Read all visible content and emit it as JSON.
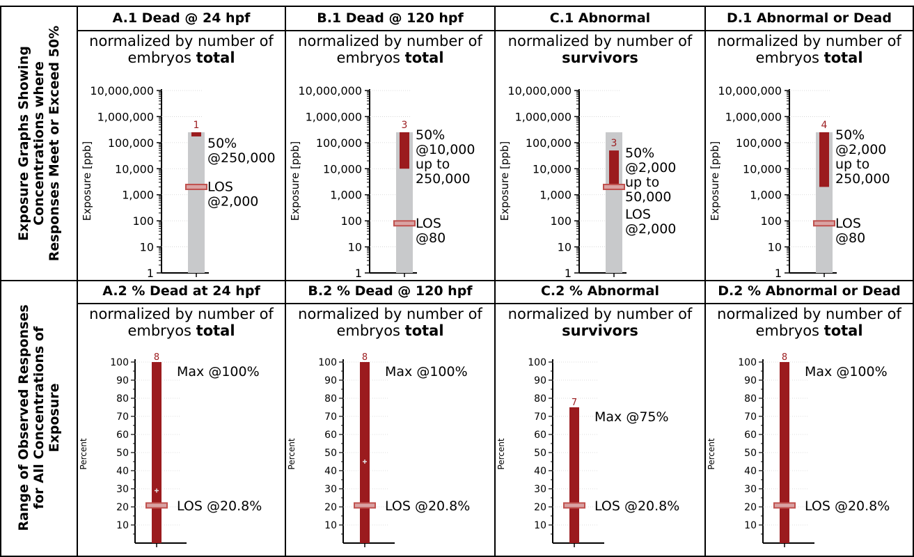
{
  "row_labels": [
    "Exposure Graphs Showing Concentrations where Responses Meet or Exceed 50%",
    "Range of Observed Responses for All Concentrations of Exposure"
  ],
  "row_label_lines": [
    [
      "Exposure Graphs Showing",
      "Concentrations where",
      "Responses Meet or Exceed 50%"
    ],
    [
      "Range of Observed Responses",
      "for All Concentrations of",
      "Exposure"
    ]
  ],
  "colors": {
    "bar_bg": "#c8c9cb",
    "bar_fill": "#9b1b1e",
    "los_border": "#c0504d",
    "los_fill": "#d9a3a3",
    "count": "#9b1b1e"
  },
  "chart_data": [
    {
      "id": "A.1",
      "title": "A.1 Dead @ 24 hpf",
      "subtitle_pre": "normalized by number of embryos ",
      "subtitle_bold": "total",
      "type": "bar",
      "scale": "log",
      "ylabel": "Exposure [ppb]",
      "yticks": [
        "10,000,000",
        "1,000,000",
        "100,000",
        "10,000",
        "1,000",
        "100",
        "10",
        "1"
      ],
      "ylim": [
        1,
        10000000
      ],
      "range_max": 250000,
      "range": [
        250000,
        250000
      ],
      "los": 2000,
      "count": "1",
      "annotations": [
        [
          "50%",
          "@250,000"
        ],
        [
          "LOS",
          "@2,000"
        ]
      ]
    },
    {
      "id": "B.1",
      "title": "B.1 Dead @ 120 hpf",
      "subtitle_pre": "normalized by number of embryos ",
      "subtitle_bold": "total",
      "type": "bar",
      "scale": "log",
      "ylabel": "Exposure [ppb]",
      "yticks": [
        "10,000,000",
        "1,000,000",
        "100,000",
        "10,000",
        "1,000",
        "100",
        "10",
        "1"
      ],
      "ylim": [
        1,
        10000000
      ],
      "range_max": 250000,
      "range": [
        10000,
        250000
      ],
      "los": 80,
      "count": "3",
      "annotations": [
        [
          "50%",
          "@10,000",
          "up to",
          "250,000"
        ],
        [
          "LOS",
          "@80"
        ]
      ]
    },
    {
      "id": "C.1",
      "title": "C.1 Abnormal",
      "subtitle_pre": "normalized by number of ",
      "subtitle_bold": "survivors",
      "type": "bar",
      "scale": "log",
      "ylabel": "Exposure [ppb]",
      "yticks": [
        "10,000,000",
        "1,000,000",
        "100,000",
        "10,000",
        "1,000",
        "100",
        "10",
        "1"
      ],
      "ylim": [
        1,
        10000000
      ],
      "range_max": 250000,
      "range": [
        2000,
        50000
      ],
      "los": 2000,
      "count": "3",
      "annotations": [
        [
          "50%",
          "@2,000",
          "up to",
          "50,000"
        ],
        [
          "LOS",
          "@2,000"
        ]
      ]
    },
    {
      "id": "D.1",
      "title": "D.1 Abnormal or Dead",
      "subtitle_pre": "normalized by number of embryos ",
      "subtitle_bold": "total",
      "type": "bar",
      "scale": "log",
      "ylabel": "Exposure [ppb]",
      "yticks": [
        "10,000,000",
        "1,000,000",
        "100,000",
        "10,000",
        "1,000",
        "100",
        "10",
        "1"
      ],
      "ylim": [
        1,
        10000000
      ],
      "range_max": 250000,
      "range": [
        2000,
        250000
      ],
      "los": 80,
      "count": "4",
      "annotations": [
        [
          "50%",
          "@2,000",
          "up to",
          "250,000"
        ],
        [
          "LOS",
          "@80"
        ]
      ]
    },
    {
      "id": "A.2",
      "title": "A.2 % Dead at 24 hpf",
      "subtitle_pre": "normalized by number of embryos ",
      "subtitle_bold": "total",
      "type": "bar",
      "scale": "linear",
      "ylabel": "Percent",
      "yticks": [
        "100",
        "90",
        "80",
        "70",
        "60",
        "50",
        "40",
        "30",
        "20",
        "10"
      ],
      "ylim": [
        0,
        100
      ],
      "max": 100,
      "los": 20.8,
      "mean": 29,
      "count": "8",
      "annotations": [
        [
          "Max @100%"
        ],
        [
          "LOS @20.8%"
        ]
      ]
    },
    {
      "id": "B.2",
      "title": "B.2 % Dead @ 120 hpf",
      "subtitle_pre": "normalized by number of embryos ",
      "subtitle_bold": "total",
      "type": "bar",
      "scale": "linear",
      "ylabel": "Percent",
      "yticks": [
        "100",
        "90",
        "80",
        "70",
        "60",
        "50",
        "40",
        "30",
        "20",
        "10"
      ],
      "ylim": [
        0,
        100
      ],
      "max": 100,
      "los": 20.8,
      "mean": 45,
      "count": "8",
      "annotations": [
        [
          "Max @100%"
        ],
        [
          "LOS @20.8%"
        ]
      ]
    },
    {
      "id": "C.2",
      "title": "C.2 % Abnormal",
      "subtitle_pre": "normalized by number of ",
      "subtitle_bold": "survivors",
      "type": "bar",
      "scale": "linear",
      "ylabel": "Percent",
      "yticks": [
        "100",
        "90",
        "80",
        "70",
        "60",
        "50",
        "40",
        "30",
        "20",
        "10"
      ],
      "ylim": [
        0,
        100
      ],
      "max": 75,
      "los": 20.8,
      "count": "7",
      "annotations": [
        [
          "Max @75%"
        ],
        [
          "LOS @20.8%"
        ]
      ]
    },
    {
      "id": "D.2",
      "title": "D.2 % Abnormal or Dead",
      "subtitle_pre": "normalized by number of embryos ",
      "subtitle_bold": "total",
      "type": "bar",
      "scale": "linear",
      "ylabel": "Percent",
      "yticks": [
        "100",
        "90",
        "80",
        "70",
        "60",
        "50",
        "40",
        "30",
        "20",
        "10"
      ],
      "ylim": [
        0,
        100
      ],
      "max": 100,
      "los": 20.8,
      "count": "8",
      "annotations": [
        [
          "Max @100%"
        ],
        [
          "LOS @20.8%"
        ]
      ]
    }
  ]
}
